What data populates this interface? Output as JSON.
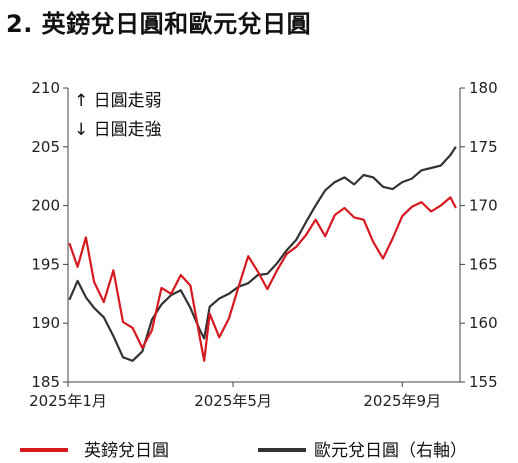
{
  "title": "2. 英鎊兌日圓和歐元兌日圓",
  "chart_data": {
    "type": "line",
    "title": "2. 英鎊兌日圓和歐元兌日圓",
    "annotations": [
      "↑ 日圓走弱",
      "↓ 日圓走強"
    ],
    "x_ticks": [
      "2025年1月",
      "2025年5月",
      "2025年9月"
    ],
    "y_left": {
      "ticks": [
        185,
        190,
        195,
        200,
        205,
        210
      ],
      "range": [
        185,
        210
      ]
    },
    "y_right": {
      "ticks": [
        155,
        160,
        165,
        170,
        175,
        180
      ],
      "range": [
        155,
        180
      ]
    },
    "legend_position": "bottom",
    "series": [
      {
        "name": "英鎊兌日圓",
        "axis": "left",
        "color": "#d71920",
        "x": [
          "2025-01-02",
          "2025-01-08",
          "2025-01-14",
          "2025-01-20",
          "2025-01-27",
          "2025-02-03",
          "2025-02-10",
          "2025-02-17",
          "2025-02-24",
          "2025-03-03",
          "2025-03-10",
          "2025-03-17",
          "2025-03-24",
          "2025-03-31",
          "2025-04-07",
          "2025-04-10",
          "2025-04-14",
          "2025-04-21",
          "2025-04-28",
          "2025-05-05",
          "2025-05-12",
          "2025-05-19",
          "2025-05-26",
          "2025-06-02",
          "2025-06-09",
          "2025-06-16",
          "2025-06-23",
          "2025-06-30",
          "2025-07-07",
          "2025-07-14",
          "2025-07-21",
          "2025-07-28",
          "2025-08-04",
          "2025-08-11",
          "2025-08-18",
          "2025-08-25",
          "2025-09-01",
          "2025-09-08",
          "2025-09-15",
          "2025-09-22",
          "2025-09-29",
          "2025-10-06",
          "2025-10-10"
        ],
        "values": [
          196.8,
          194.8,
          197.3,
          193.5,
          191.8,
          194.5,
          190.1,
          189.6,
          187.9,
          189.4,
          193.0,
          192.5,
          194.1,
          193.2,
          188.7,
          186.8,
          190.8,
          188.8,
          190.4,
          193.1,
          195.7,
          194.4,
          192.9,
          194.5,
          195.9,
          196.5,
          197.5,
          198.8,
          197.4,
          199.2,
          199.8,
          199.0,
          198.8,
          196.9,
          195.5,
          197.2,
          199.1,
          199.9,
          200.3,
          199.5,
          200.0,
          200.7,
          199.8
        ]
      },
      {
        "name": "歐元兌日圓（右軸）",
        "axis": "right",
        "color": "#333333",
        "x": [
          "2025-01-02",
          "2025-01-08",
          "2025-01-14",
          "2025-01-20",
          "2025-01-27",
          "2025-02-03",
          "2025-02-10",
          "2025-02-17",
          "2025-02-24",
          "2025-03-03",
          "2025-03-10",
          "2025-03-17",
          "2025-03-24",
          "2025-03-31",
          "2025-04-07",
          "2025-04-10",
          "2025-04-14",
          "2025-04-21",
          "2025-04-28",
          "2025-05-05",
          "2025-05-12",
          "2025-05-19",
          "2025-05-26",
          "2025-06-02",
          "2025-06-09",
          "2025-06-16",
          "2025-06-23",
          "2025-06-30",
          "2025-07-07",
          "2025-07-14",
          "2025-07-21",
          "2025-07-28",
          "2025-08-04",
          "2025-08-11",
          "2025-08-18",
          "2025-08-25",
          "2025-09-01",
          "2025-09-08",
          "2025-09-15",
          "2025-09-22",
          "2025-09-29",
          "2025-10-06",
          "2025-10-10"
        ],
        "values": [
          162.0,
          163.6,
          162.2,
          161.3,
          160.5,
          158.9,
          157.1,
          156.8,
          157.6,
          160.3,
          161.6,
          162.4,
          162.8,
          161.3,
          159.4,
          158.7,
          161.4,
          162.1,
          162.5,
          163.1,
          163.4,
          164.1,
          164.2,
          165.1,
          166.2,
          167.1,
          168.6,
          170.0,
          171.3,
          172.0,
          172.4,
          171.8,
          172.6,
          172.4,
          171.6,
          171.4,
          172.0,
          172.3,
          173.0,
          173.2,
          173.4,
          174.3,
          175.0
        ]
      }
    ]
  }
}
